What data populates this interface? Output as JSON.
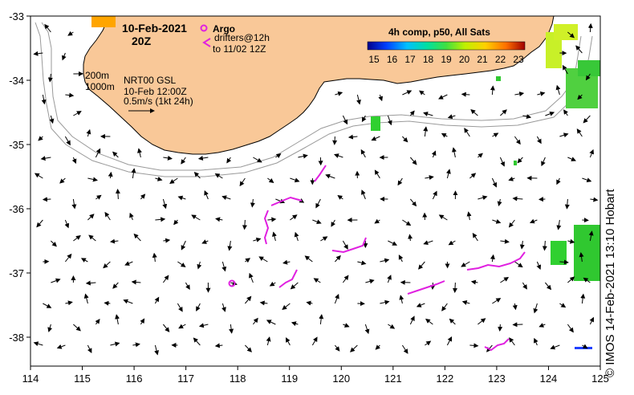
{
  "map": {
    "date": "10-Feb-2021",
    "time": "20Z",
    "legend": {
      "argo_label": "Argo",
      "drifters_label": "drifters@12h",
      "drifters_until": "to 11/02 12Z",
      "argo_color": "#e020e0",
      "drifter_color": "#e020e0"
    },
    "isobaths": [
      "200m",
      "1000m"
    ],
    "product": {
      "name": "NRT00 GSL",
      "date": "10-Feb 12:00Z",
      "scale": "0.5m/s (1kt 24h)"
    },
    "sst": {
      "title": "4h comp, p50, All Sats",
      "ticks": [
        "15",
        "16",
        "17",
        "18",
        "19",
        "20",
        "21",
        "22",
        "23"
      ]
    },
    "x_axis_ticks": [
      "114",
      "115",
      "116",
      "117",
      "118",
      "119",
      "120",
      "121",
      "122",
      "123",
      "124",
      "125"
    ],
    "y_axis_ticks": [
      "-33",
      "-34",
      "-35",
      "-36",
      "-37",
      "-38"
    ],
    "credit": "© IMOS 14-Feb-2021 13:10 Hobart",
    "land_color": "#f9c898"
  }
}
